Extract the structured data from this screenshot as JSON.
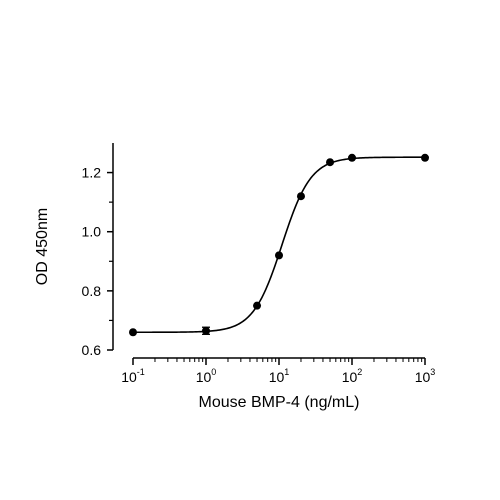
{
  "chart_data": {
    "type": "scatter",
    "xlabel": "Mouse BMP-4 (ng/mL)",
    "ylabel": "OD 450nm",
    "x_scale": "log10",
    "xlim": [
      0.1,
      1000
    ],
    "ylim": [
      0.6,
      1.3
    ],
    "x_ticks": [
      {
        "base": "10",
        "exp": "-1"
      },
      {
        "base": "10",
        "exp": "0"
      },
      {
        "base": "10",
        "exp": "1"
      },
      {
        "base": "10",
        "exp": "2"
      },
      {
        "base": "10",
        "exp": "3"
      }
    ],
    "y_ticks": [
      "0.6",
      "0.8",
      "1.0",
      "1.2"
    ],
    "grid": false,
    "legend": "none",
    "series": [
      {
        "points": [
          {
            "x": 0.1,
            "y": 0.66
          },
          {
            "x": 1,
            "y": 0.665,
            "err": 0.012
          },
          {
            "x": 5,
            "y": 0.75
          },
          {
            "x": 10,
            "y": 0.92
          },
          {
            "x": 20,
            "y": 1.12
          },
          {
            "x": 50,
            "y": 1.235
          },
          {
            "x": 100,
            "y": 1.25
          },
          {
            "x": 1000,
            "y": 1.25
          }
        ],
        "fit": {
          "model": "4PL",
          "bottom": 0.66,
          "top": 1.252,
          "ec50": 11,
          "hill": 2.2
        }
      }
    ],
    "color": "#000000"
  }
}
